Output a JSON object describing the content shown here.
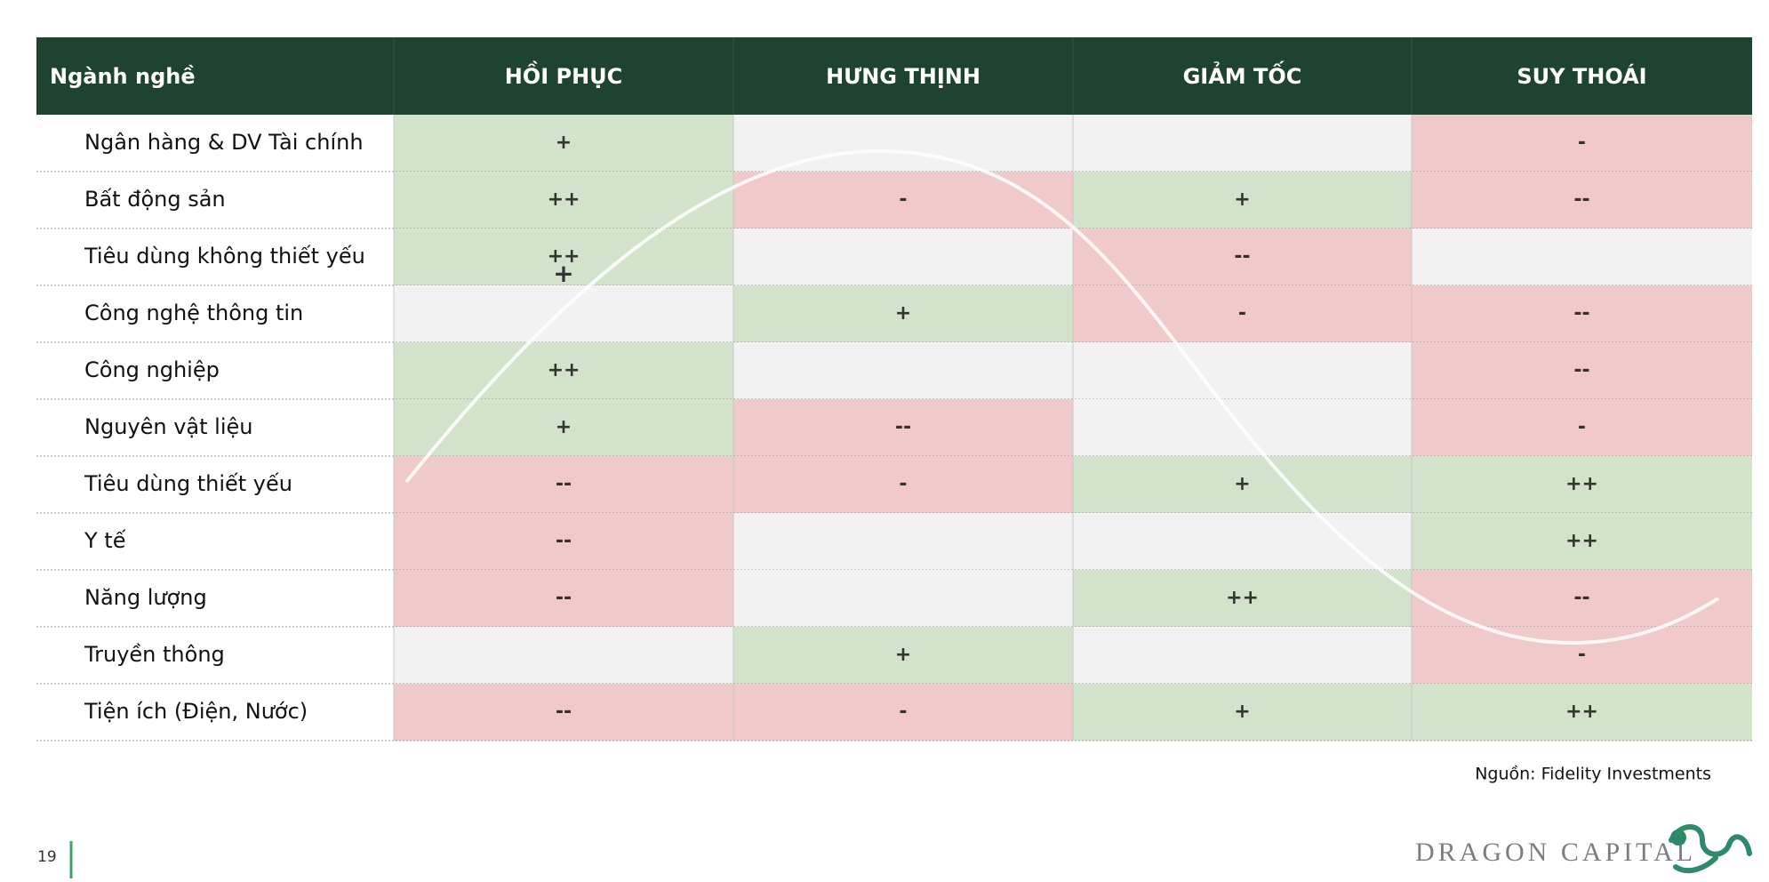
{
  "table": {
    "header": [
      "Ngành nghề",
      "HỒI PHỤC",
      "HƯNG THỊNH",
      "GIẢM TỐC",
      "SUY THOÁI"
    ],
    "rows": [
      [
        "Ngân hàng & DV Tài chính",
        "+",
        "",
        "",
        "-"
      ],
      [
        "Bất động sản",
        "++",
        "-",
        "+",
        "--"
      ],
      [
        "Tiêu dùng không thiết yếu",
        "++",
        "",
        "--",
        ""
      ],
      [
        "Công nghệ thông tin",
        "",
        "+",
        "-",
        "--"
      ],
      [
        "Công nghiệp",
        "++",
        "",
        "",
        "--"
      ],
      [
        "Nguyên vật liệu",
        "+",
        "--",
        "",
        "-"
      ],
      [
        "Tiêu dùng thiết yếu",
        "--",
        "-",
        "+",
        "++"
      ],
      [
        "Y tế",
        "--",
        "",
        "",
        "++"
      ],
      [
        "Năng lượng",
        "--",
        "",
        "++",
        "--"
      ],
      [
        "Truyền thông",
        "",
        "+",
        "",
        "-"
      ],
      [
        "Tiện ích (Điện, Nước)",
        "--",
        "-",
        "+",
        "++"
      ]
    ],
    "stray_mark": "+",
    "cell_colors": {
      "positive": "#d2e2cb",
      "negative": "#f0c9ca",
      "neutral": "#f2f2f2"
    }
  },
  "source": "Nguồn: Fidelity Investments",
  "page_number": "19",
  "logo": "DRAGON CAPITAL"
}
